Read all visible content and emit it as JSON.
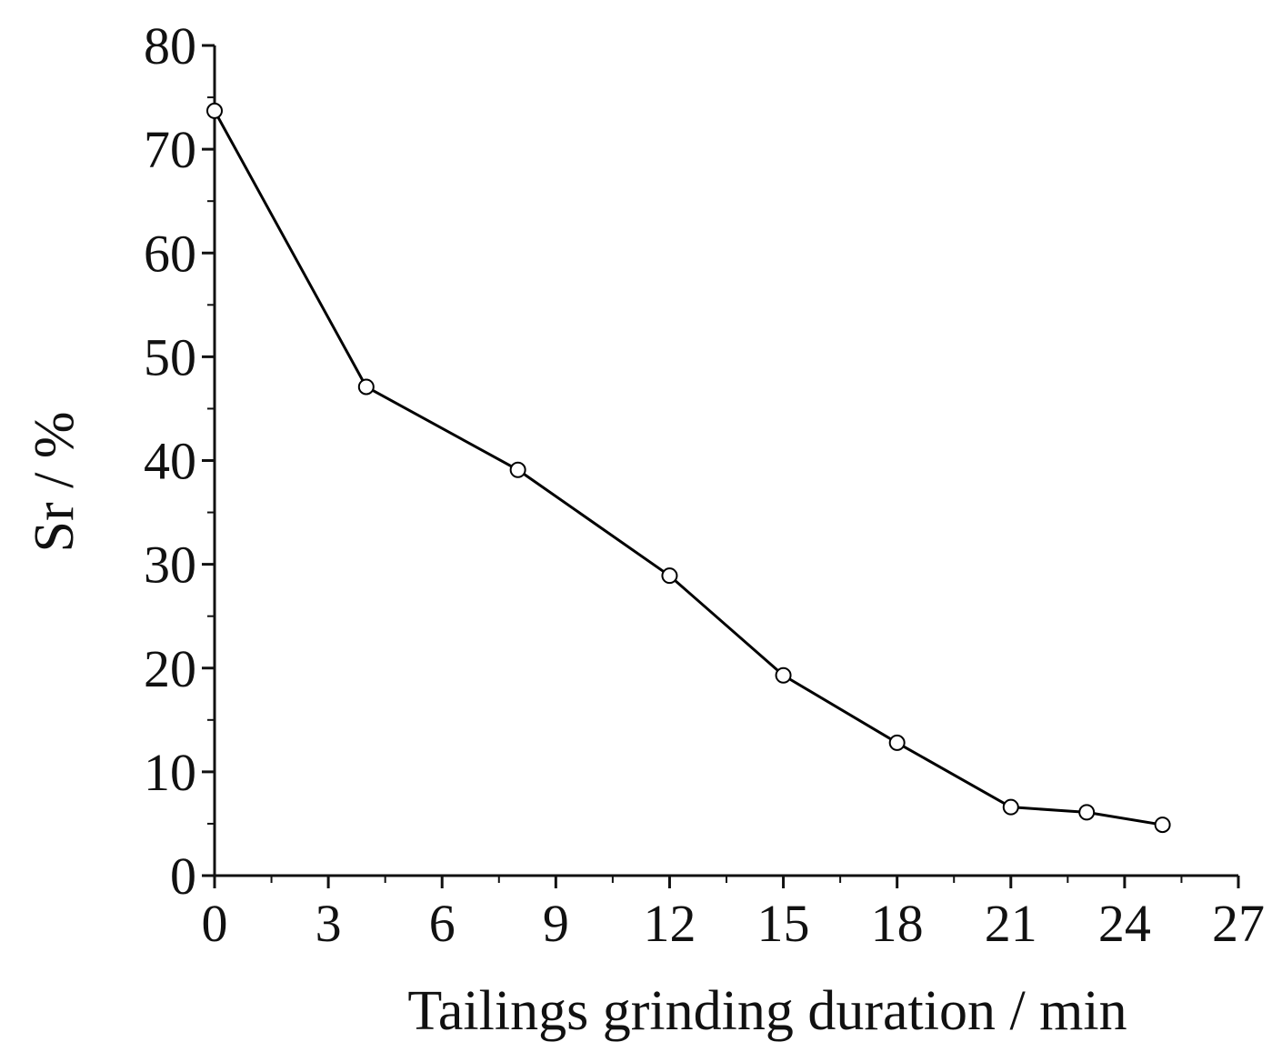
{
  "chart_data": {
    "type": "line",
    "title": "",
    "xlabel": "Tailings grinding duration / min",
    "ylabel": "Sr / %",
    "xlim": [
      0,
      27
    ],
    "ylim": [
      0,
      80
    ],
    "xticks": [
      0,
      3,
      6,
      9,
      12,
      15,
      18,
      21,
      24,
      27
    ],
    "xtick_labels": [
      "0",
      "3",
      "6",
      "9",
      "12",
      "15",
      "18",
      "21",
      "24",
      "27"
    ],
    "yticks": [
      0,
      10,
      20,
      30,
      40,
      50,
      60,
      70,
      80
    ],
    "ytick_labels": [
      "0",
      "10",
      "20",
      "30",
      "40",
      "50",
      "60",
      "70",
      "80"
    ],
    "grid": false,
    "legend": "none",
    "marker": "open-circle",
    "line_color": "#000000",
    "series": [
      {
        "x": [
          0,
          4,
          8,
          12,
          15,
          18,
          21,
          23,
          25
        ],
        "y": [
          73.7,
          47.1,
          39.1,
          28.9,
          19.3,
          12.8,
          6.6,
          6.1,
          4.9
        ]
      }
    ]
  }
}
